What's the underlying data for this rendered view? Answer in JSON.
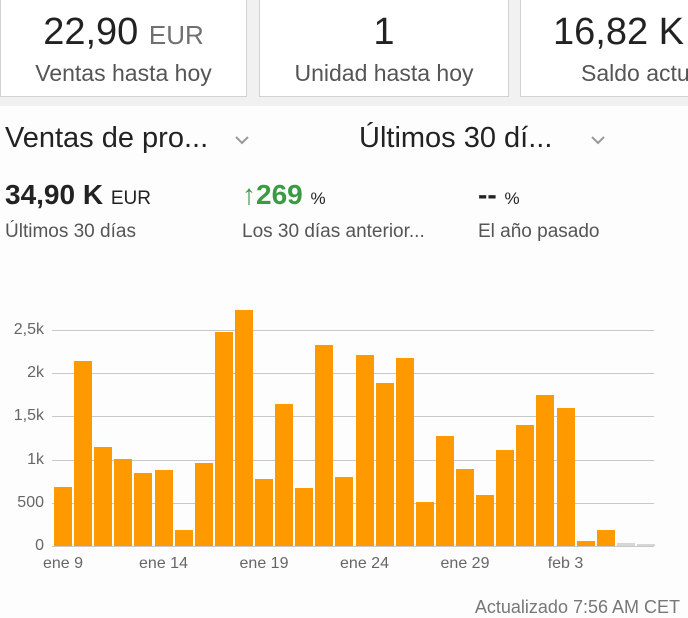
{
  "summary_cards": [
    {
      "value": "22,90",
      "unit": "EUR",
      "label": "Ventas hasta hoy"
    },
    {
      "value": "1",
      "unit": "",
      "label": "Unidad hasta hoy"
    },
    {
      "value": "16,82 K",
      "unit": "",
      "label": "Saldo actu"
    }
  ],
  "filters": {
    "metric_dropdown": "Ventas de pro...",
    "period_dropdown": "Últimos 30 dí..."
  },
  "metrics": {
    "total": {
      "value": "34,90 K",
      "unit": "EUR",
      "label": "Últimos 30 días"
    },
    "vs_previous": {
      "arrow": "↑",
      "value": "269",
      "unit": "%",
      "label": "Los 30 días anterior..."
    },
    "vs_last_year": {
      "value": "--",
      "unit": "%",
      "label": "El año pasado"
    }
  },
  "colors": {
    "bar": "#ff9900",
    "bar_empty": "#d6d6d6",
    "positive": "#3d9a44"
  },
  "chart_data": {
    "type": "bar",
    "title": "",
    "xlabel": "",
    "ylabel": "",
    "ylim": [
      0,
      2500
    ],
    "grid": true,
    "yticks": [
      "0",
      "500",
      "1k",
      "1,5k",
      "2k",
      "2,5k"
    ],
    "xticks": [
      {
        "label": "ene 9",
        "index": 0
      },
      {
        "label": "ene 14",
        "index": 5
      },
      {
        "label": "ene 19",
        "index": 10
      },
      {
        "label": "ene 24",
        "index": 15
      },
      {
        "label": "ene 29",
        "index": 20
      },
      {
        "label": "feb 3",
        "index": 25
      }
    ],
    "categories": [
      "ene 9",
      "ene 10",
      "ene 11",
      "ene 12",
      "ene 13",
      "ene 14",
      "ene 15",
      "ene 16",
      "ene 17",
      "ene 18",
      "ene 19",
      "ene 20",
      "ene 21",
      "ene 22",
      "ene 23",
      "ene 24",
      "ene 25",
      "ene 26",
      "ene 27",
      "ene 28",
      "ene 29",
      "ene 30",
      "ene 31",
      "feb 1",
      "feb 2",
      "feb 3",
      "feb 4",
      "feb 5",
      "feb 6",
      "feb 7"
    ],
    "values": [
      680,
      2140,
      1145,
      1005,
      845,
      880,
      185,
      960,
      2475,
      2730,
      775,
      1645,
      670,
      2325,
      800,
      2210,
      1885,
      2175,
      510,
      1270,
      890,
      590,
      1110,
      1400,
      1750,
      1600,
      60,
      185,
      20,
      10
    ],
    "pending": [
      false,
      false,
      false,
      false,
      false,
      false,
      false,
      false,
      false,
      false,
      false,
      false,
      false,
      false,
      false,
      false,
      false,
      false,
      false,
      false,
      false,
      false,
      false,
      false,
      false,
      false,
      false,
      false,
      true,
      true
    ]
  },
  "footer": {
    "updated": "Actualizado 7:56 AM CET"
  }
}
